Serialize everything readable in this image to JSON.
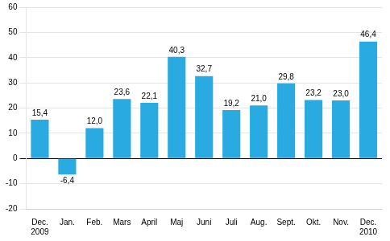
{
  "chart_data": {
    "type": "bar",
    "categories": [
      "Dec.",
      "Jan.",
      "Feb.",
      "Mars",
      "April",
      "Maj",
      "Juni",
      "Juli",
      "Aug.",
      "Sept.",
      "Okt.",
      "Nov.",
      "Dec."
    ],
    "values": [
      15.4,
      -6.4,
      12.0,
      23.6,
      22.1,
      40.3,
      32.7,
      19.2,
      21.0,
      29.8,
      23.2,
      23.0,
      46.4
    ],
    "value_labels": [
      "15,4",
      "-6,4",
      "12,0",
      "23,6",
      "22,1",
      "40,3",
      "32,7",
      "19,2",
      "21,0",
      "29,8",
      "23,2",
      "23,0",
      "46,4"
    ],
    "data_labels": true,
    "annotations": [
      {
        "text": "2009",
        "x": 0
      },
      {
        "text": "2010",
        "x": 12
      }
    ],
    "color": "#29ABE2",
    "ylim": [
      -20,
      60
    ],
    "yticks": [
      -20,
      -10,
      0,
      10,
      20,
      30,
      40,
      50,
      60
    ],
    "grid": true
  }
}
